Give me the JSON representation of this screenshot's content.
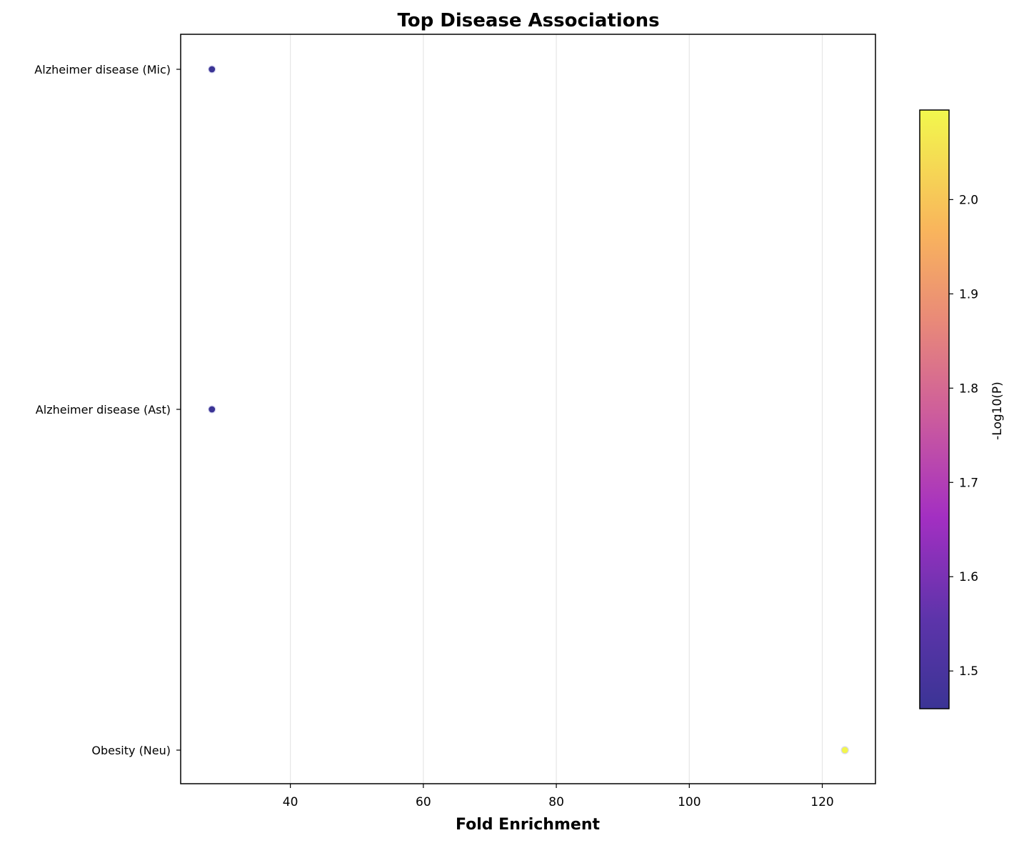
{
  "chart_data": {
    "type": "scatter",
    "title": "Top Disease Associations",
    "xlabel": "Fold Enrichment",
    "ylabel": "",
    "xlim": [
      23.5,
      128
    ],
    "xticks": [
      40,
      60,
      80,
      100,
      120
    ],
    "grid": "vertical",
    "categories": [
      "Alzheimer disease (Mic)",
      "Alzheimer disease (Ast)",
      "Obesity (Neu)"
    ],
    "points": [
      {
        "category": "Alzheimer disease (Mic)",
        "x": 28.2,
        "neg_log10_p": 1.46
      },
      {
        "category": "Alzheimer disease (Ast)",
        "x": 28.2,
        "neg_log10_p": 1.46
      },
      {
        "category": "Obesity (Neu)",
        "x": 123.4,
        "neg_log10_p": 2.09
      }
    ],
    "colorbar": {
      "label": "-Log10(P)",
      "colormap": "plasma",
      "range": [
        1.46,
        2.095
      ],
      "ticks": [
        1.5,
        1.6,
        1.7,
        1.8,
        1.9,
        2.0
      ],
      "placement": "right"
    }
  }
}
